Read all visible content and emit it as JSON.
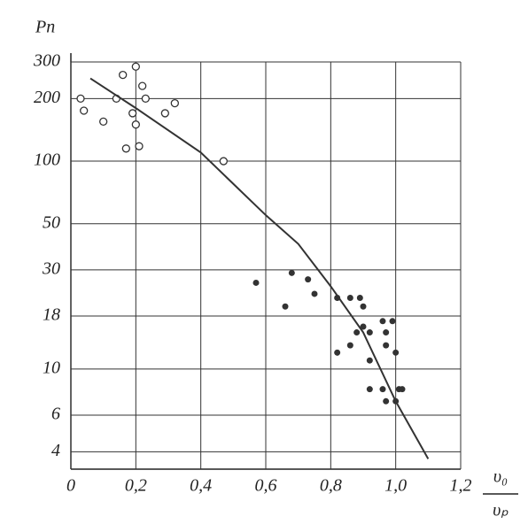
{
  "chart_data": {
    "type": "scatter",
    "y_label": "Pп",
    "x_label_numerator": "υ₀",
    "x_label_denominator": "υₚ",
    "log_y": true,
    "grid": true,
    "xlim": [
      0,
      1.2
    ],
    "ylim": [
      3.3,
      300
    ],
    "xticks": [
      0,
      {
        "value": 0.2,
        "label": "0,2"
      },
      {
        "value": 0.4,
        "label": "0,4"
      },
      {
        "value": 0.6,
        "label": "0,6"
      },
      {
        "value": 0.8,
        "label": "0,8"
      },
      {
        "value": 1.0,
        "label": "1,0"
      },
      {
        "value": 1.2,
        "label": "1,2"
      }
    ],
    "yticks": [
      4,
      6,
      10,
      18,
      30,
      50,
      100,
      200,
      300
    ],
    "series": [
      {
        "marker": "open",
        "color": "#333",
        "x": [
          0.03,
          0.04,
          0.1,
          0.14,
          0.16,
          0.17,
          0.19,
          0.2,
          0.2,
          0.21,
          0.22,
          0.23,
          0.29,
          0.32,
          0.47
        ],
        "values": [
          200,
          175,
          155,
          200,
          260,
          115,
          170,
          285,
          150,
          118,
          230,
          200,
          170,
          190,
          100
        ]
      },
      {
        "marker": "filled",
        "color": "#333",
        "x": [
          0.57,
          0.66,
          0.68,
          0.73,
          0.75,
          0.82,
          0.86,
          0.89,
          0.9,
          0.82,
          0.86,
          0.88,
          0.9,
          0.92,
          0.92,
          0.92,
          0.96,
          0.97,
          0.97,
          0.96,
          0.97,
          0.99,
          1.0,
          1.0,
          1.01,
          1.02
        ],
        "values": [
          26,
          20,
          29,
          27,
          23,
          22,
          22,
          22,
          20,
          12,
          13,
          15,
          16,
          15,
          11,
          8,
          17,
          13,
          15,
          8,
          7,
          17,
          12,
          7,
          8,
          8
        ]
      },
      {
        "marker": "line",
        "color": "#333",
        "x": [
          0.06,
          0.2,
          0.4,
          0.6,
          0.7,
          0.8,
          0.9,
          1.0,
          1.1
        ],
        "values": [
          250,
          180,
          110,
          55,
          40,
          25,
          15,
          7,
          3.7
        ]
      }
    ]
  }
}
